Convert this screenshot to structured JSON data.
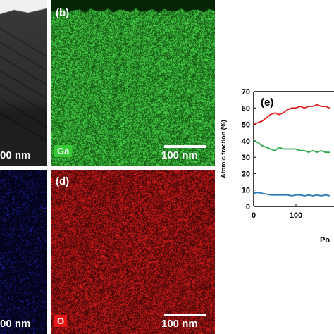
{
  "panels": {
    "a": {
      "scale_label": "00 nm"
    },
    "b": {
      "label": "(b)",
      "element": "Ga",
      "element_color": "#36c936",
      "scale_label": "100 nm"
    },
    "c": {
      "scale_label": "00 nm"
    },
    "d": {
      "label": "(d)",
      "element": "O",
      "element_color": "#e81515",
      "scale_label": "100 nm"
    }
  },
  "chart_data": {
    "type": "line",
    "panel_label": "(e)",
    "ylabel": "Atomic fraction (%)",
    "xlabel": "Po",
    "ylim": [
      0,
      70
    ],
    "xlim": [
      0,
      190
    ],
    "yticks": [
      0,
      10,
      20,
      30,
      40,
      50,
      60,
      70
    ],
    "xticks": [
      0,
      100
    ],
    "series": [
      {
        "color": "#e02020",
        "x": [
          0,
          10,
          20,
          30,
          40,
          50,
          60,
          70,
          80,
          90,
          100,
          110,
          120,
          130,
          140,
          150,
          160,
          170,
          180
        ],
        "y": [
          50,
          51,
          52,
          54,
          56,
          57,
          56,
          57,
          59,
          60,
          60,
          61,
          60,
          61,
          61,
          62,
          61,
          61,
          60
        ]
      },
      {
        "color": "#2aa845",
        "x": [
          0,
          10,
          20,
          30,
          40,
          50,
          60,
          70,
          80,
          90,
          100,
          110,
          120,
          130,
          140,
          150,
          160,
          170,
          180
        ],
        "y": [
          40,
          39,
          37,
          36,
          35,
          34,
          36,
          35,
          35,
          35,
          35,
          34,
          34,
          33,
          34,
          33,
          34,
          33,
          33
        ]
      },
      {
        "color": "#2a7ab8",
        "x": [
          0,
          10,
          20,
          30,
          40,
          50,
          60,
          70,
          80,
          90,
          100,
          110,
          120,
          130,
          140,
          150,
          160,
          170,
          180
        ],
        "y": [
          8,
          8.5,
          8,
          7.5,
          7,
          7,
          7,
          7,
          7,
          6.5,
          7,
          7,
          6.5,
          7,
          6.5,
          7,
          6.5,
          7,
          6.5
        ]
      }
    ]
  }
}
